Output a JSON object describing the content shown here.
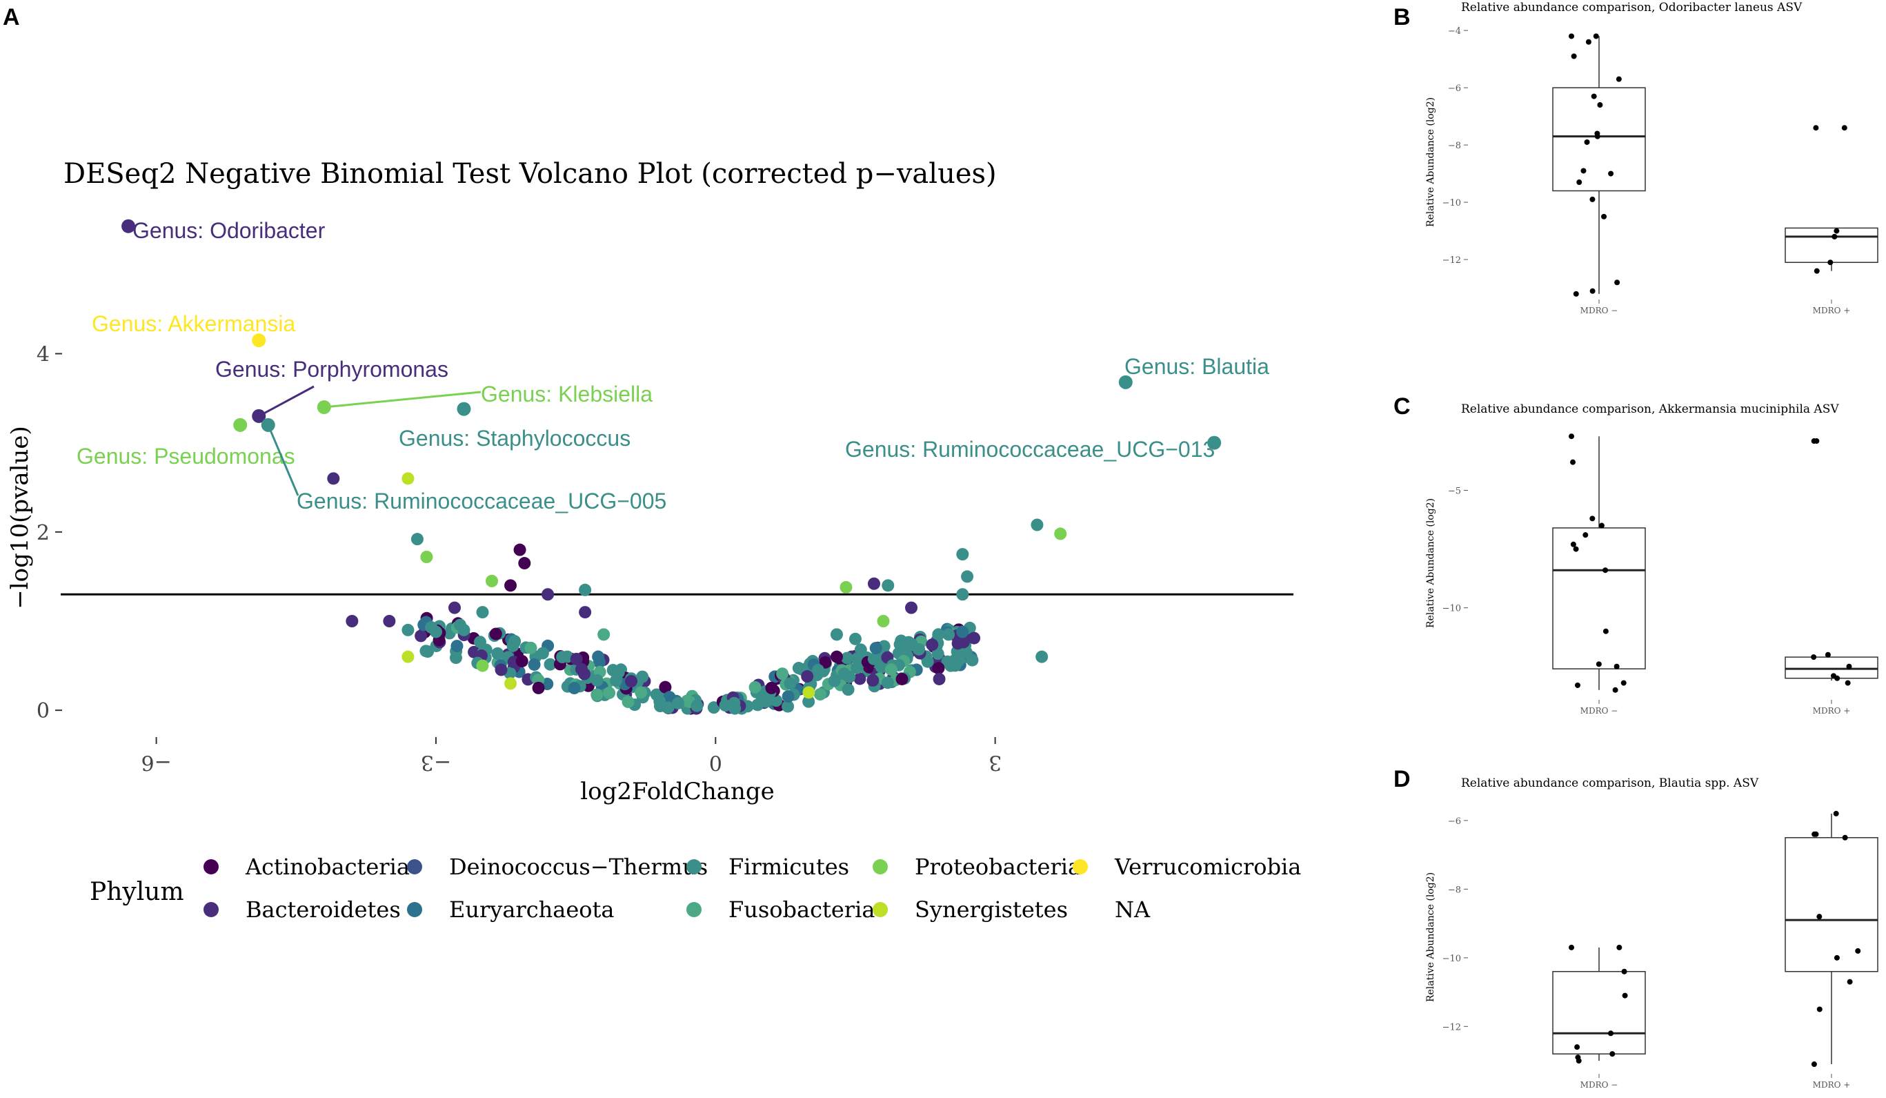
{
  "colors": {
    "Actinobacteria": "#440154",
    "Bacteroidetes": "#472d7b",
    "Deinococcus-Thermus": "#3b528b",
    "Euryarchaeota": "#2c728e",
    "Firmicutes": "#3b8f8a",
    "Fusobacteria": "#4ba986",
    "Proteobacteria": "#7ad151",
    "Synergistetes": "#bddf26",
    "Verrucomicrobia": "#fde725",
    "NA": "#9e9e9e"
  },
  "chart_data": [
    {
      "panel": "A",
      "type": "scatter",
      "title": "DESeq2 Negative Binomial Test Volcano Plot (corrected p−values)",
      "xlabel": "log2FoldChange",
      "ylabel": "−log10(pvalue)",
      "xlim": [
        -6.9,
        6.2
      ],
      "ylim": [
        -0.2,
        5.8
      ],
      "xticks": [
        -6,
        -3,
        0,
        3
      ],
      "xtick_labels": [
        "−6",
        "−3",
        "0",
        "3"
      ],
      "yticks": [
        0,
        2,
        4
      ],
      "ytick_labels": [
        "0",
        "2",
        "4"
      ],
      "threshold_y": 1.3,
      "legend_title": "Phylum",
      "legend": [
        "Actinobacteria",
        "Bacteroidetes",
        "Deinococcus−Thermus",
        "Euryarchaeota",
        "Firmicutes",
        "Fusobacteria",
        "Proteobacteria",
        "Synergistetes",
        "Verrucomicrobia",
        "NA"
      ],
      "labeled_points": [
        {
          "label": "Genus: Odoribacter",
          "x": -6.3,
          "y": 5.43,
          "phylum": "Bacteroidetes"
        },
        {
          "label": "Genus: Akkermansia",
          "x": -4.9,
          "y": 4.15,
          "phylum": "Verrucomicrobia"
        },
        {
          "label": "Genus: Porphyromonas",
          "x": -4.9,
          "y": 3.3,
          "phylum": "Bacteroidetes"
        },
        {
          "label": "Genus: Klebsiella",
          "x": -4.2,
          "y": 3.4,
          "phylum": "Proteobacteria"
        },
        {
          "label": "Genus: Pseudomonas",
          "x": -5.1,
          "y": 3.2,
          "phylum": "Proteobacteria"
        },
        {
          "label": "Genus: Staphylococcus",
          "x": -2.7,
          "y": 3.38,
          "phylum": "Firmicutes"
        },
        {
          "label": "Genus: Ruminococcaceae_UCG−005",
          "x": -4.8,
          "y": 3.2,
          "phylum": "Firmicutes"
        },
        {
          "label": "Genus: Blautia",
          "x": 4.4,
          "y": 3.68,
          "phylum": "Firmicutes"
        },
        {
          "label": "Genus: Ruminococcaceae_UCG−013",
          "x": 5.35,
          "y": 3.0,
          "phylum": "Firmicutes"
        }
      ],
      "points": [
        {
          "x": -4.1,
          "y": 2.6,
          "phylum": "Bacteroidetes"
        },
        {
          "x": -3.3,
          "y": 2.6,
          "phylum": "Synergistetes"
        },
        {
          "x": -3.2,
          "y": 1.92,
          "phylum": "Firmicutes"
        },
        {
          "x": -3.1,
          "y": 1.72,
          "phylum": "Proteobacteria"
        },
        {
          "x": -2.1,
          "y": 1.8,
          "phylum": "Actinobacteria"
        },
        {
          "x": -2.05,
          "y": 1.65,
          "phylum": "Actinobacteria"
        },
        {
          "x": -2.4,
          "y": 1.45,
          "phylum": "Proteobacteria"
        },
        {
          "x": -2.2,
          "y": 1.4,
          "phylum": "Actinobacteria"
        },
        {
          "x": -1.8,
          "y": 1.3,
          "phylum": "Bacteroidetes"
        },
        {
          "x": -1.4,
          "y": 1.35,
          "phylum": "Firmicutes"
        },
        {
          "x": -2.8,
          "y": 1.15,
          "phylum": "Bacteroidetes"
        },
        {
          "x": -2.5,
          "y": 1.1,
          "phylum": "Firmicutes"
        },
        {
          "x": -1.4,
          "y": 1.1,
          "phylum": "Bacteroidetes"
        },
        {
          "x": -1.2,
          "y": 0.85,
          "phylum": "Fusobacteria"
        },
        {
          "x": -3.5,
          "y": 1.0,
          "phylum": "Bacteroidetes"
        },
        {
          "x": -3.9,
          "y": 1.0,
          "phylum": "Bacteroidetes"
        },
        {
          "x": -3.3,
          "y": 0.9,
          "phylum": "Firmicutes"
        },
        {
          "x": -3.05,
          "y": 0.93,
          "phylum": "Firmicutes"
        },
        {
          "x": -2.7,
          "y": 0.9,
          "phylum": "Firmicutes"
        },
        {
          "x": -3.3,
          "y": 0.6,
          "phylum": "Synergistetes"
        },
        {
          "x": -2.5,
          "y": 0.5,
          "phylum": "Proteobacteria"
        },
        {
          "x": -2.2,
          "y": 0.3,
          "phylum": "Synergistetes"
        },
        {
          "x": -1.9,
          "y": 0.25,
          "phylum": "Actinobacteria"
        },
        {
          "x": -1.1,
          "y": 0.45,
          "phylum": "Firmicutes"
        },
        {
          "x": -0.8,
          "y": 0.2,
          "phylum": "Fusobacteria"
        },
        {
          "x": -0.6,
          "y": 0.1,
          "phylum": "Firmicutes"
        },
        {
          "x": -0.4,
          "y": 0.08,
          "phylum": "Firmicutes"
        },
        {
          "x": -0.2,
          "y": 0.05,
          "phylum": "Firmicutes"
        },
        {
          "x": 0.2,
          "y": 0.08,
          "phylum": "Firmicutes"
        },
        {
          "x": 0.5,
          "y": 0.15,
          "phylum": "Firmicutes"
        },
        {
          "x": 0.8,
          "y": 0.3,
          "phylum": "Firmicutes"
        },
        {
          "x": 1.1,
          "y": 0.45,
          "phylum": "Firmicutes"
        },
        {
          "x": 1.3,
          "y": 0.6,
          "phylum": "Actinobacteria"
        },
        {
          "x": 1.5,
          "y": 0.8,
          "phylum": "Firmicutes"
        },
        {
          "x": 1.4,
          "y": 1.38,
          "phylum": "Proteobacteria"
        },
        {
          "x": 1.7,
          "y": 1.42,
          "phylum": "Bacteroidetes"
        },
        {
          "x": 1.85,
          "y": 1.4,
          "phylum": "Firmicutes"
        },
        {
          "x": 1.8,
          "y": 1.0,
          "phylum": "Proteobacteria"
        },
        {
          "x": 1.3,
          "y": 0.85,
          "phylum": "Firmicutes"
        },
        {
          "x": 2.1,
          "y": 1.15,
          "phylum": "Bacteroidetes"
        },
        {
          "x": 2.5,
          "y": 0.85,
          "phylum": "Firmicutes"
        },
        {
          "x": 2.6,
          "y": 0.75,
          "phylum": "Bacteroidetes"
        },
        {
          "x": 2.7,
          "y": 1.5,
          "phylum": "Firmicutes"
        },
        {
          "x": 2.65,
          "y": 1.3,
          "phylum": "Firmicutes"
        },
        {
          "x": 2.65,
          "y": 1.75,
          "phylum": "Firmicutes"
        },
        {
          "x": 2.6,
          "y": 0.55,
          "phylum": "Firmicutes"
        },
        {
          "x": 3.45,
          "y": 2.08,
          "phylum": "Firmicutes"
        },
        {
          "x": 3.7,
          "y": 1.98,
          "phylum": "Proteobacteria"
        },
        {
          "x": 3.5,
          "y": 0.6,
          "phylum": "Firmicutes"
        },
        {
          "x": 2.4,
          "y": 0.35,
          "phylum": "Bacteroidetes"
        },
        {
          "x": 2.0,
          "y": 0.35,
          "phylum": "Actinobacteria"
        },
        {
          "x": 1.0,
          "y": 0.2,
          "phylum": "Synergistetes"
        },
        {
          "x": 0.6,
          "y": 0.25,
          "phylum": "Actinobacteria"
        }
      ],
      "cloud": {
        "description": "dense V-shaped cloud of non-significant points around log2FoldChange 0",
        "n_points": 320
      }
    },
    {
      "panel": "B",
      "type": "box",
      "title": "Relative abundance comparison, Odoribacter laneus ASV",
      "ylabel": "Relative Abundance (log2)",
      "categories": [
        "MDRO −",
        "MDRO +"
      ],
      "ylim": [
        -13.3,
        -3.9
      ],
      "yticks": [
        -4,
        -6,
        -8,
        -10,
        -12
      ],
      "ytick_labels": [
        "−4",
        "−6",
        "−8",
        "−10",
        "−12"
      ],
      "boxes": [
        {
          "q1": -9.6,
          "median": -7.7,
          "q3": -6.0,
          "wmin": -13.2,
          "wmax": -4.2
        },
        {
          "q1": -12.1,
          "median": -11.2,
          "q3": -10.9,
          "wmin": -12.4,
          "wmax": -10.9
        }
      ],
      "points": [
        [
          -4.2,
          -4.2,
          -4.4,
          -4.9,
          -5.7,
          -6.3,
          -6.6,
          -7.6,
          -7.7,
          -7.9,
          -8.9,
          -9.0,
          -9.3,
          -9.9,
          -10.5,
          -12.8,
          -13.1,
          -13.2
        ],
        [
          -7.4,
          -7.4,
          -11.0,
          -11.2,
          -12.1,
          -12.4
        ]
      ]
    },
    {
      "panel": "C",
      "type": "box",
      "title": "Relative abundance comparison, Akkermansia muciniphila ASV",
      "ylabel": "Relative Abundance (log2)",
      "categories": [
        "MDRO −",
        "MDRO +"
      ],
      "ylim": [
        -13.8,
        -2.4
      ],
      "yticks": [
        -5,
        -10
      ],
      "ytick_labels": [
        "−5",
        "−10"
      ],
      "boxes": [
        {
          "q1": -12.6,
          "median": -8.4,
          "q3": -6.6,
          "wmin": -13.5,
          "wmax": -2.7
        },
        {
          "q1": -13.0,
          "median": -12.6,
          "q3": -12.1,
          "wmin": -13.1,
          "wmax": -12.1
        }
      ],
      "points": [
        [
          -2.7,
          -3.8,
          -6.2,
          -6.5,
          -6.9,
          -7.3,
          -7.5,
          -8.4,
          -11.0,
          -12.4,
          -12.5,
          -13.2,
          -13.3,
          -13.5
        ],
        [
          -2.9,
          -2.9,
          -12.0,
          -12.1,
          -12.5,
          -12.9,
          -13.0,
          -13.2
        ]
      ]
    },
    {
      "panel": "D",
      "type": "box",
      "title": "Relative abundance comparison, Blautia spp. ASV",
      "ylabel": "Relative Abundance (log2)",
      "categories": [
        "MDRO −",
        "MDRO +"
      ],
      "ylim": [
        -13.3,
        -5.5
      ],
      "yticks": [
        -6,
        -8,
        -10,
        -12
      ],
      "ytick_labels": [
        "−6",
        "−8",
        "−10",
        "−12"
      ],
      "boxes": [
        {
          "q1": -12.8,
          "median": -12.2,
          "q3": -10.4,
          "wmin": -13.0,
          "wmax": -9.7
        },
        {
          "q1": -10.4,
          "median": -8.9,
          "q3": -6.5,
          "wmin": -13.1,
          "wmax": -5.8
        }
      ],
      "points": [
        [
          -9.7,
          -9.7,
          -10.4,
          -11.1,
          -12.2,
          -12.6,
          -12.8,
          -12.9,
          -13.0
        ],
        [
          -5.8,
          -6.4,
          -6.4,
          -6.5,
          -8.8,
          -9.8,
          -10.0,
          -10.7,
          -11.5,
          -13.1
        ]
      ]
    }
  ]
}
